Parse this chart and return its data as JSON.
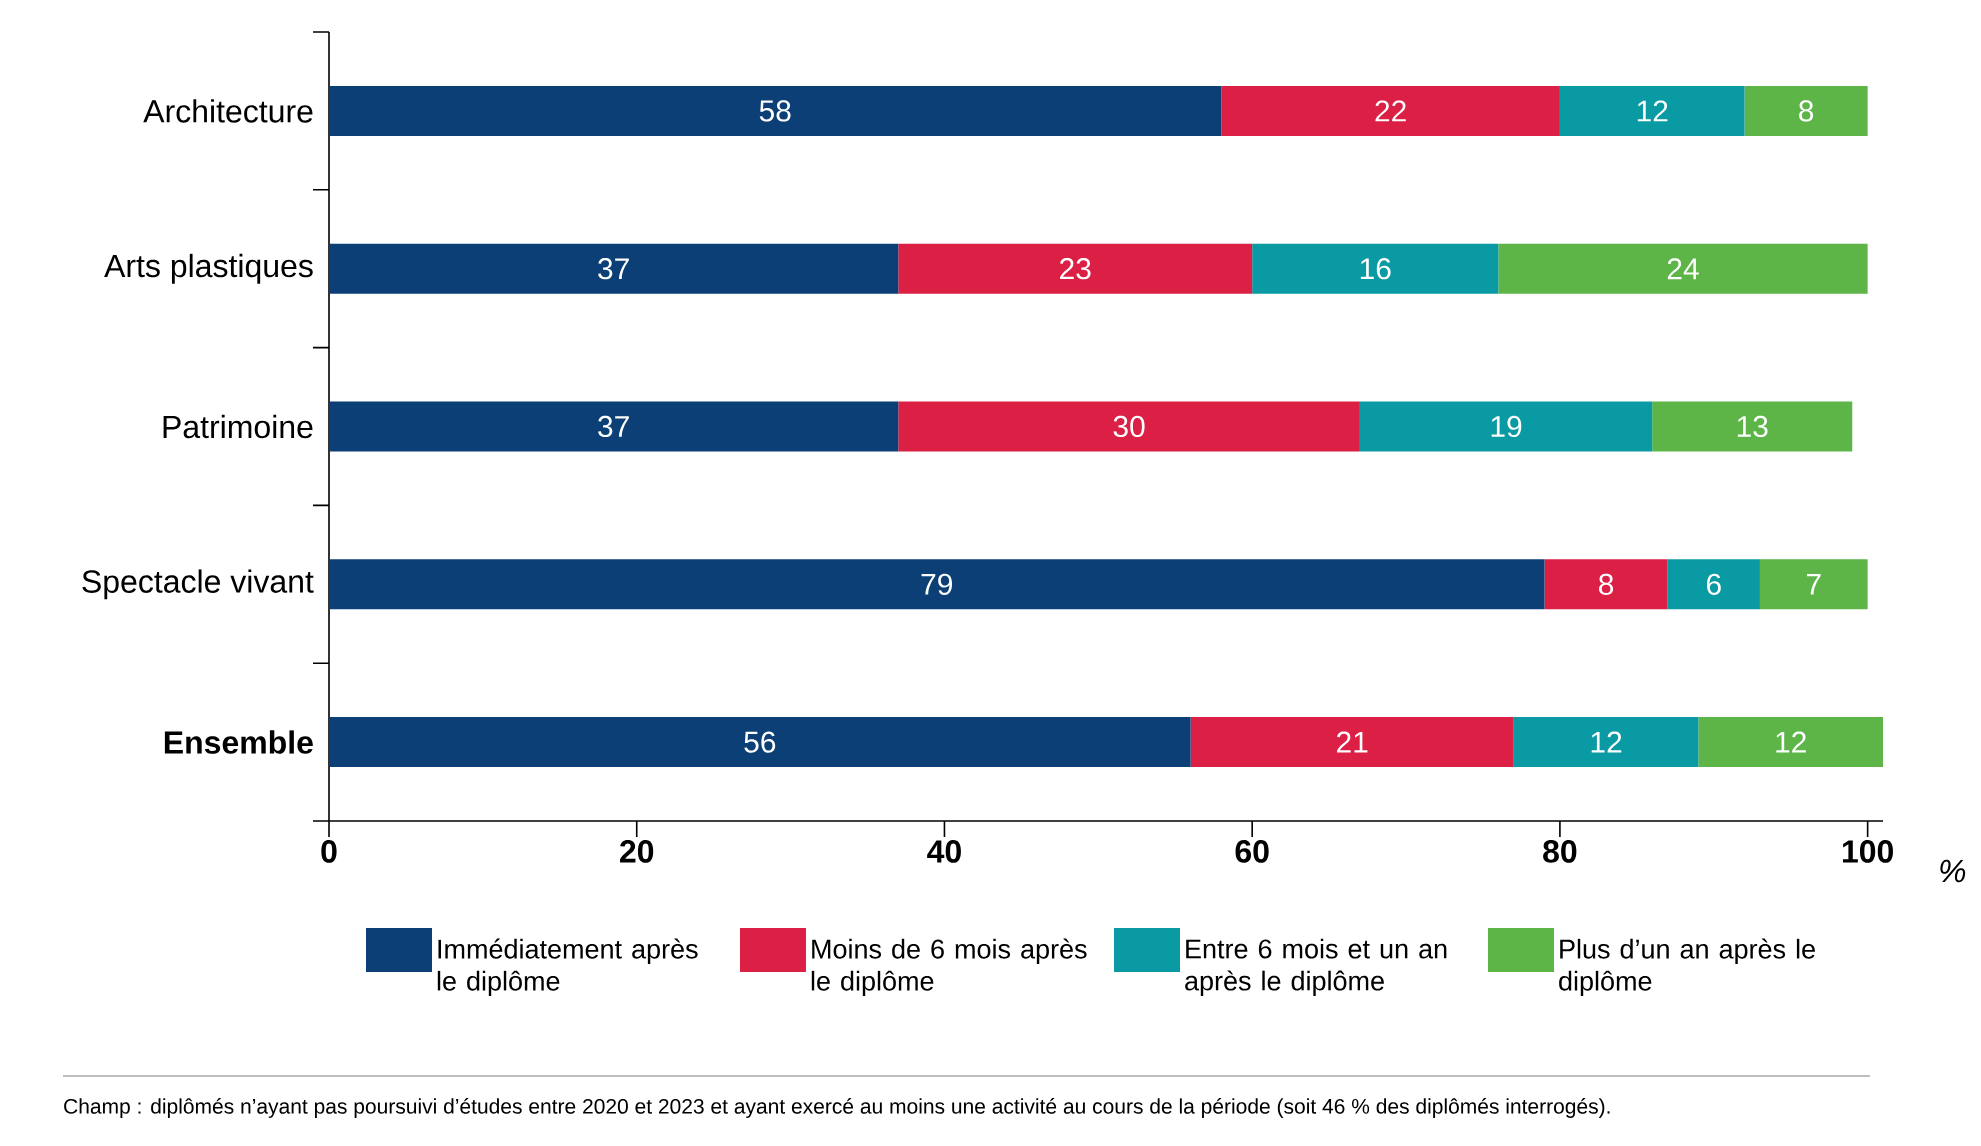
{
  "chart_data": {
    "type": "bar",
    "orientation": "horizontal",
    "stacked": true,
    "categories": [
      "Architecture",
      "Arts plastiques",
      "Patrimoine",
      "Spectacle vivant",
      "**Ensemble**"
    ],
    "series": [
      {
        "name": "Immédiatement après le diplôme",
        "color": "#0b3f75",
        "values": [
          58,
          37,
          37,
          79,
          56
        ]
      },
      {
        "name": "Moins de 6 mois après le diplôme",
        "color": "#db1f45",
        "values": [
          22,
          23,
          30,
          8,
          21
        ]
      },
      {
        "name": "Entre 6 mois et un an après le diplôme",
        "color": "#0a9aa3",
        "values": [
          12,
          16,
          19,
          6,
          12
        ]
      },
      {
        "name": "Plus d’un an après le diplôme",
        "color": "#5db548",
        "values": [
          8,
          24,
          13,
          7,
          12
        ]
      }
    ],
    "xlim": [
      0,
      101
    ],
    "xticks": [
      0,
      20,
      40,
      60,
      80,
      100
    ],
    "xlabel": "%",
    "data_labels": true,
    "legend": "bottom",
    "grid": false,
    "annotations": [
      "Champ : diplômés n’ayant pas poursuivi d’études entre 2020 et 2023 et ayant exercé au moins une activité au cours de la période (soit 46 % des diplômés interrogés)."
    ]
  }
}
